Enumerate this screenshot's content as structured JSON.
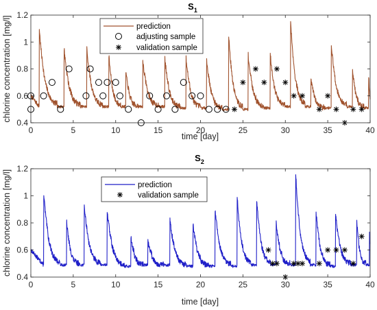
{
  "chart_data": [
    {
      "type": "line",
      "title_main": "S",
      "title_sub": "1",
      "xlabel": "time [day]",
      "ylabel": "chlorine concentration [mg/l]",
      "xlim": [
        0,
        40
      ],
      "ylim": [
        0.4,
        1.2
      ],
      "xticks": [
        0,
        5,
        10,
        15,
        20,
        25,
        30,
        35,
        40
      ],
      "yticks": [
        0.4,
        0.6,
        0.8,
        1,
        1.2
      ],
      "ytick_labels": [
        "0.4",
        "0.6",
        "0.8",
        "1",
        "1.2"
      ],
      "legend_position": "top-center",
      "colors": {
        "prediction": "#a0522d",
        "markers": "#000000"
      },
      "prediction_peaks": [
        {
          "t": 1.0,
          "peak": 1.1,
          "base": 0.52
        },
        {
          "t": 3.9,
          "peak": 0.97,
          "base": 0.52
        },
        {
          "t": 6.6,
          "peak": 0.95,
          "base": 0.52
        },
        {
          "t": 9.2,
          "peak": 0.9,
          "base": 0.52
        },
        {
          "t": 11.2,
          "peak": 0.78,
          "base": 0.52
        },
        {
          "t": 13.2,
          "peak": 0.86,
          "base": 0.52
        },
        {
          "t": 15.8,
          "peak": 0.88,
          "base": 0.51
        },
        {
          "t": 18.3,
          "peak": 0.88,
          "base": 0.51
        },
        {
          "t": 20.7,
          "peak": 0.88,
          "base": 0.5
        },
        {
          "t": 23.3,
          "peak": 1.08,
          "base": 0.5
        },
        {
          "t": 25.6,
          "peak": 0.92,
          "base": 0.51
        },
        {
          "t": 28.2,
          "peak": 0.93,
          "base": 0.52
        },
        {
          "t": 30.6,
          "peak": 1.19,
          "base": 0.52
        },
        {
          "t": 33.0,
          "peak": 0.72,
          "base": 0.51
        },
        {
          "t": 35.4,
          "peak": 1.01,
          "base": 0.52
        },
        {
          "t": 37.9,
          "peak": 0.82,
          "base": 0.51
        },
        {
          "t": 39.8,
          "peak": 0.78,
          "base": 0.52
        }
      ],
      "series": [
        {
          "name": "adjusting sample",
          "marker": "circle",
          "points": [
            [
              0,
              0.5
            ],
            [
              0,
              0.6
            ],
            [
              1.5,
              0.6
            ],
            [
              2.5,
              0.7
            ],
            [
              3.5,
              0.5
            ],
            [
              4.5,
              0.8
            ],
            [
              6.5,
              0.6
            ],
            [
              7,
              0.8
            ],
            [
              8,
              0.7
            ],
            [
              8.5,
              0.6
            ],
            [
              9,
              0.7
            ],
            [
              10,
              0.7
            ],
            [
              10.5,
              0.6
            ],
            [
              11.5,
              0.5
            ],
            [
              13,
              0.4
            ],
            [
              14,
              0.6
            ],
            [
              15,
              0.5
            ],
            [
              16,
              0.6
            ],
            [
              17,
              0.5
            ],
            [
              18,
              0.7
            ],
            [
              19,
              0.6
            ],
            [
              20,
              0.6
            ],
            [
              21,
              0.5
            ],
            [
              22,
              0.5
            ],
            [
              23,
              0.5
            ]
          ]
        },
        {
          "name": "validation sample",
          "marker": "star",
          "points": [
            [
              24,
              0.5
            ],
            [
              25,
              0.7
            ],
            [
              26.5,
              0.8
            ],
            [
              27.5,
              0.7
            ],
            [
              29,
              0.8
            ],
            [
              30,
              0.7
            ],
            [
              31,
              0.6
            ],
            [
              32,
              0.6
            ],
            [
              34,
              0.5
            ],
            [
              35,
              0.6
            ],
            [
              36,
              0.5
            ],
            [
              37,
              0.4
            ],
            [
              38,
              0.5
            ],
            [
              39,
              0.5
            ]
          ]
        }
      ],
      "legend": [
        "prediction",
        "adjusting sample",
        "validation sample"
      ]
    },
    {
      "type": "line",
      "title_main": "S",
      "title_sub": "2",
      "xlabel": "time [day]",
      "ylabel": "chlorine concentration [mg/l]",
      "xlim": [
        0,
        40
      ],
      "ylim": [
        0.4,
        1.2
      ],
      "xticks": [
        0,
        5,
        10,
        15,
        20,
        25,
        30,
        35,
        40
      ],
      "yticks": [
        0.4,
        0.6,
        0.8,
        1,
        1.2
      ],
      "ytick_labels": [
        "0.4",
        "0.6",
        "0.8",
        "1",
        "1.2"
      ],
      "legend_position": "top-center",
      "colors": {
        "prediction": "#1f1fc8",
        "markers": "#000000"
      },
      "prediction_peaks": [
        {
          "t": 1.5,
          "peak": 1.04,
          "base": 0.49
        },
        {
          "t": 4.2,
          "peak": 0.82,
          "base": 0.49
        },
        {
          "t": 6.3,
          "peak": 0.93,
          "base": 0.49
        },
        {
          "t": 9.0,
          "peak": 0.89,
          "base": 0.48
        },
        {
          "t": 11.8,
          "peak": 0.7,
          "base": 0.49
        },
        {
          "t": 13.8,
          "peak": 0.66,
          "base": 0.49
        },
        {
          "t": 16.4,
          "peak": 0.82,
          "base": 0.48
        },
        {
          "t": 19.1,
          "peak": 0.8,
          "base": 0.48
        },
        {
          "t": 21.7,
          "peak": 0.92,
          "base": 0.48
        },
        {
          "t": 24.3,
          "peak": 1.02,
          "base": 0.49
        },
        {
          "t": 26.6,
          "peak": 1.0,
          "base": 0.49
        },
        {
          "t": 28.9,
          "peak": 0.82,
          "base": 0.49
        },
        {
          "t": 31.2,
          "peak": 1.2,
          "base": 0.49
        },
        {
          "t": 33.6,
          "peak": 0.9,
          "base": 0.48
        },
        {
          "t": 35.9,
          "peak": 0.88,
          "base": 0.49
        },
        {
          "t": 38.4,
          "peak": 0.85,
          "base": 0.49
        },
        {
          "t": 39.9,
          "peak": 0.77,
          "base": 0.5
        }
      ],
      "series": [
        {
          "name": "validation sample",
          "marker": "star",
          "points": [
            [
              28,
              0.6
            ],
            [
              28.5,
              0.5
            ],
            [
              29,
              0.5
            ],
            [
              30,
              0.4
            ],
            [
              31,
              0.5
            ],
            [
              31.5,
              0.5
            ],
            [
              32,
              0.5
            ],
            [
              34,
              0.5
            ],
            [
              35,
              0.6
            ],
            [
              36,
              0.6
            ],
            [
              37,
              0.6
            ],
            [
              38,
              0.5
            ],
            [
              39,
              0.7
            ]
          ]
        }
      ],
      "legend": [
        "prediction",
        "validation sample"
      ]
    }
  ]
}
